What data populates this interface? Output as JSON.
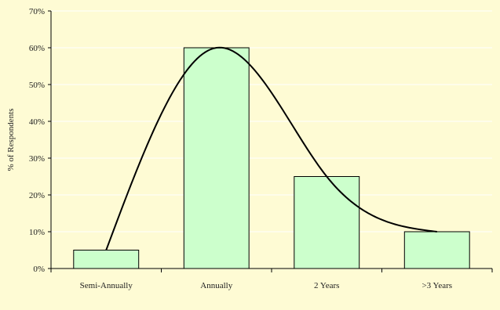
{
  "chart_data": {
    "type": "bar",
    "title": "",
    "xlabel": "",
    "ylabel": "% of Respondents",
    "categories": [
      "Semi-Annually",
      "Annually",
      "2 Years",
      ">3 Years"
    ],
    "values": [
      5,
      60,
      25,
      10
    ],
    "ylim": [
      0,
      70
    ],
    "yticks": [
      0,
      10,
      20,
      30,
      40,
      50,
      60,
      70
    ],
    "ytick_labels": [
      "0%",
      "10%",
      "20%",
      "30%",
      "40%",
      "50%",
      "60%",
      "70%"
    ],
    "grid": true,
    "legend": "none",
    "has_trend_curve": true,
    "colors": {
      "background": "#fefbd4",
      "bar_fill": "#ccffcc",
      "bar_stroke": "#000000",
      "grid": "#ffffff",
      "curve": "#000000",
      "axis": "#000000"
    }
  }
}
